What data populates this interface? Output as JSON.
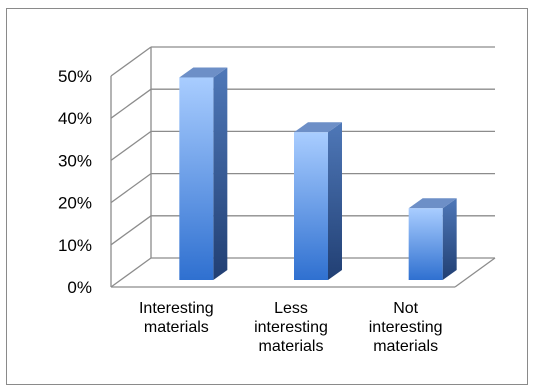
{
  "chart_data": {
    "type": "bar",
    "title": "",
    "xlabel": "",
    "ylabel": "",
    "categories": [
      [
        "Interesting",
        "materials"
      ],
      [
        "Less",
        "interesting",
        "materials"
      ],
      [
        "Not",
        "interesting",
        "materials"
      ]
    ],
    "values": [
      48,
      35,
      17
    ],
    "ylim": [
      0,
      50
    ],
    "yticks": [
      0,
      10,
      20,
      30,
      40,
      50
    ],
    "ytick_labels": [
      "0%",
      "10%",
      "20%",
      "30%",
      "40%",
      "50%"
    ],
    "grid": true,
    "three_d": true,
    "colors": {
      "bar_light": "#9cc3ff",
      "bar_dark": "#2d6fcf",
      "bar_side": "#2a5596",
      "bar_top": "#6d8fc7",
      "grid": "#8c8c8c"
    }
  }
}
